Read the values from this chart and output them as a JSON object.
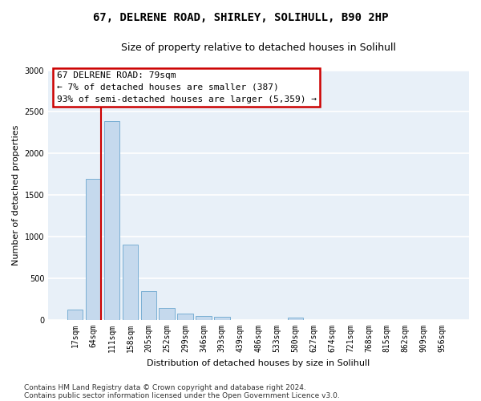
{
  "title_line1": "67, DELRENE ROAD, SHIRLEY, SOLIHULL, B90 2HP",
  "title_line2": "Size of property relative to detached houses in Solihull",
  "xlabel": "Distribution of detached houses by size in Solihull",
  "ylabel": "Number of detached properties",
  "bar_labels": [
    "17sqm",
    "64sqm",
    "111sqm",
    "158sqm",
    "205sqm",
    "252sqm",
    "299sqm",
    "346sqm",
    "393sqm",
    "439sqm",
    "486sqm",
    "533sqm",
    "580sqm",
    "627sqm",
    "674sqm",
    "721sqm",
    "768sqm",
    "815sqm",
    "862sqm",
    "909sqm",
    "956sqm"
  ],
  "bar_values": [
    130,
    1700,
    2390,
    910,
    345,
    145,
    80,
    50,
    40,
    0,
    0,
    0,
    30,
    0,
    0,
    0,
    0,
    0,
    0,
    0,
    0
  ],
  "bar_color": "#c5d9ed",
  "bar_edge_color": "#7aafd4",
  "vline_color": "#cc0000",
  "ylim": [
    0,
    3000
  ],
  "yticks": [
    0,
    500,
    1000,
    1500,
    2000,
    2500,
    3000
  ],
  "annotation_text": "67 DELRENE ROAD: 79sqm\n← 7% of detached houses are smaller (387)\n93% of semi-detached houses are larger (5,359) →",
  "annotation_box_color": "#ffffff",
  "annotation_border_color": "#cc0000",
  "footer_line1": "Contains HM Land Registry data © Crown copyright and database right 2024.",
  "footer_line2": "Contains public sector information licensed under the Open Government Licence v3.0.",
  "background_color": "#e8f0f8",
  "fig_background_color": "#ffffff",
  "grid_color": "#ffffff",
  "title_fontsize": 10,
  "subtitle_fontsize": 9,
  "axis_label_fontsize": 8,
  "tick_fontsize": 7,
  "annotation_fontsize": 8,
  "footer_fontsize": 6.5
}
